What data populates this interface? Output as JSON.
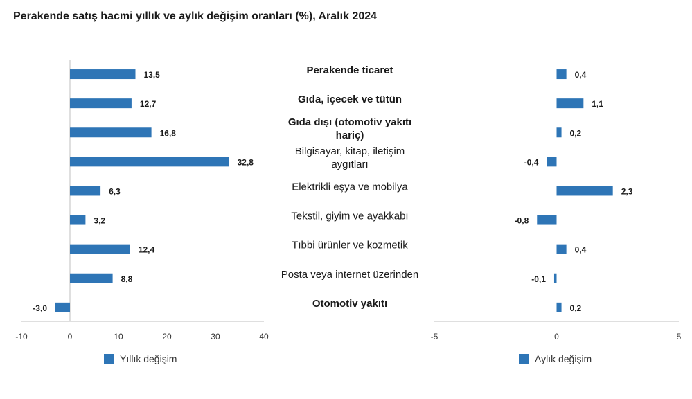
{
  "title": "Perakende satış hacmi yıllık ve aylık değişim oranları (%), Aralık 2024",
  "colors": {
    "bar": "#2E75B6",
    "axis": "#bfbfbf"
  },
  "chart_data": [
    {
      "type": "bar",
      "orientation": "horizontal",
      "series": [
        {
          "name": "Yıllık değişim",
          "values": [
            13.5,
            12.7,
            16.8,
            32.8,
            6.3,
            3.2,
            12.4,
            8.8,
            -3.0
          ]
        }
      ],
      "value_labels": [
        "13,5",
        "12,7",
        "16,8",
        "32,8",
        "6,3",
        "3,2",
        "12,4",
        "8,8",
        "-3,0"
      ],
      "xlim": [
        -10,
        40
      ],
      "ticks": [
        -10,
        0,
        10,
        20,
        30,
        40
      ],
      "tick_labels": [
        "-10",
        "0",
        "10",
        "20",
        "30",
        "40"
      ],
      "legend": "bottom"
    },
    {
      "type": "bar",
      "orientation": "horizontal",
      "series": [
        {
          "name": "Aylık değişim",
          "values": [
            0.4,
            1.1,
            0.2,
            -0.4,
            2.3,
            -0.8,
            0.4,
            -0.1,
            0.2
          ]
        }
      ],
      "value_labels": [
        "0,4",
        "1,1",
        "0,2",
        "-0,4",
        "2,3",
        "-0,8",
        "0,4",
        "-0,1",
        "0,2"
      ],
      "xlim": [
        -5,
        5
      ],
      "ticks": [
        -5,
        0,
        5
      ],
      "tick_labels": [
        "-5",
        "0",
        "5"
      ],
      "legend": "bottom"
    }
  ],
  "categories": [
    {
      "lines": [
        "Perakende ticaret"
      ],
      "bold": true
    },
    {
      "lines": [
        "Gıda, içecek ve tütün"
      ],
      "bold": true
    },
    {
      "lines": [
        "Gıda dışı (otomotiv yakıtı",
        "hariç)"
      ],
      "bold": true
    },
    {
      "lines": [
        "Bilgisayar, kitap, iletişim",
        "aygıtları"
      ],
      "bold": false
    },
    {
      "lines": [
        "Elektrikli eşya ve mobilya"
      ],
      "bold": false
    },
    {
      "lines": [
        "Tekstil, giyim ve ayakkabı"
      ],
      "bold": false
    },
    {
      "lines": [
        "Tıbbi ürünler ve kozmetik"
      ],
      "bold": false
    },
    {
      "lines": [
        "Posta veya internet üzerinden"
      ],
      "bold": false
    },
    {
      "lines": [
        "Otomotiv yakıtı"
      ],
      "bold": true
    }
  ]
}
